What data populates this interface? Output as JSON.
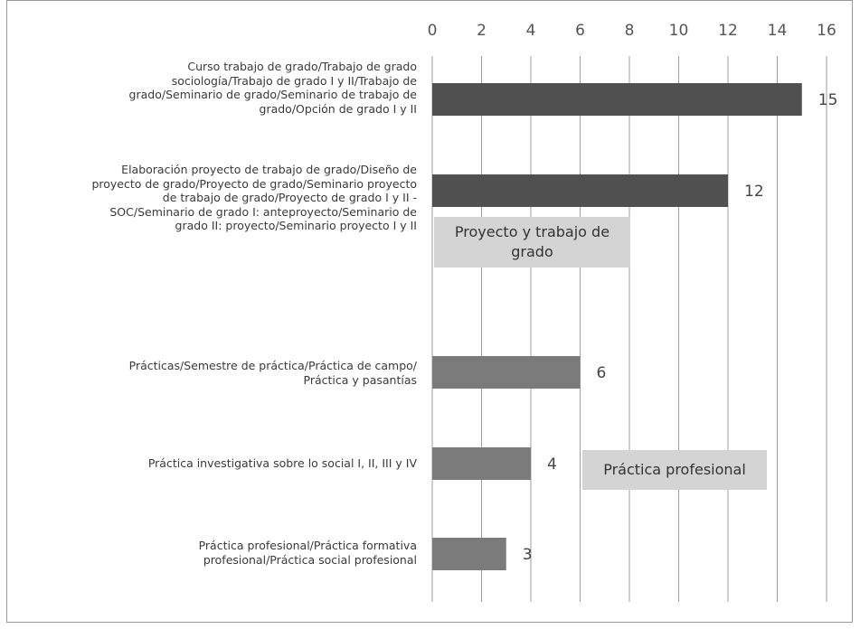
{
  "chart_data": {
    "type": "bar",
    "orientation": "horizontal",
    "title": "",
    "xlabel": "",
    "ylabel": "",
    "xlim": [
      0,
      16
    ],
    "xticks": [
      0,
      2,
      4,
      6,
      8,
      10,
      12,
      14,
      16
    ],
    "grid": true,
    "legend": "none",
    "categories": [
      "Curso trabajo de grado/Trabajo de grado sociología/Trabajo de grado I y II/Trabajo de grado/Seminario de grado/Seminario de trabajo de grado/Opción de grado I y II",
      "Elaboración proyecto de trabajo de grado/Diseño de proyecto de grado/Proyecto de grado/Seminario proyecto de trabajo de grado/Proyecto de grado I y II - SOC/Seminario de grado I: anteproyecto/Seminario de grado II: proyecto/Seminario proyecto I y II",
      "Prácticas/Semestre de práctica/Práctica de campo/ Práctica y pasantías",
      "Práctica investigativa sobre lo social I, II, III y IV",
      "Práctica profesional/Práctica formativa profesional/Práctica social profesional"
    ],
    "values": [
      15,
      12,
      6,
      4,
      3
    ],
    "data_labels": [
      "15",
      "12",
      "6",
      "4",
      "3"
    ],
    "groups": [
      {
        "label": "Proyecto y trabajo de grado",
        "categories": [
          0,
          1
        ]
      },
      {
        "label": "Práctica profesional",
        "categories": [
          2,
          3,
          4
        ]
      }
    ]
  },
  "colors": {
    "bar_dark": "#505050",
    "bar_light": "#7b7b7b",
    "grid": "#9f9f9f",
    "group_box": "#d4d4d4",
    "text": "#3a3a3a",
    "frame": "#9a9a9a"
  },
  "labels": {
    "cat0": [
      "Curso trabajo de grado/Trabajo de grado",
      "sociología/Trabajo de grado I y II/Trabajo de",
      "grado/Seminario de grado/Seminario de trabajo de",
      "grado/Opción de grado I y II"
    ],
    "cat1": [
      "Elaboración proyecto de trabajo de grado/Diseño de",
      "proyecto de grado/Proyecto de grado/Seminario proyecto",
      "de trabajo de grado/Proyecto de grado I y II -",
      "SOC/Seminario de grado I: anteproyecto/Seminario de",
      "grado II: proyecto/Seminario proyecto I y II"
    ],
    "cat2": [
      "Prácticas/Semestre de práctica/Práctica de campo/",
      "Práctica y pasantías"
    ],
    "cat3": [
      "Práctica investigativa sobre lo social I, II, III y IV"
    ],
    "cat4": [
      "Práctica profesional/Práctica formativa",
      "profesional/Práctica social profesional"
    ],
    "group0": [
      "Proyecto y trabajo de",
      "grado"
    ],
    "group1": [
      "Práctica profesional"
    ]
  }
}
